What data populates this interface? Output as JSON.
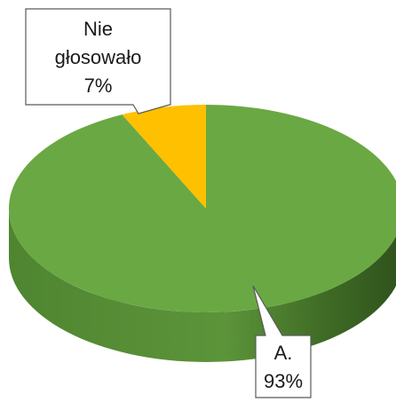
{
  "chart_data": {
    "type": "pie",
    "title": "",
    "style": "3d",
    "slices": [
      {
        "label_lines": [
          "A.",
          "93%"
        ],
        "value": 93,
        "color": "#6aa843",
        "side_color": "#4a7a2a"
      },
      {
        "label_lines": [
          "Nie",
          "głosowało",
          "7%"
        ],
        "value": 7,
        "color": "#ffc000",
        "side_color": "#c89400"
      }
    ]
  }
}
